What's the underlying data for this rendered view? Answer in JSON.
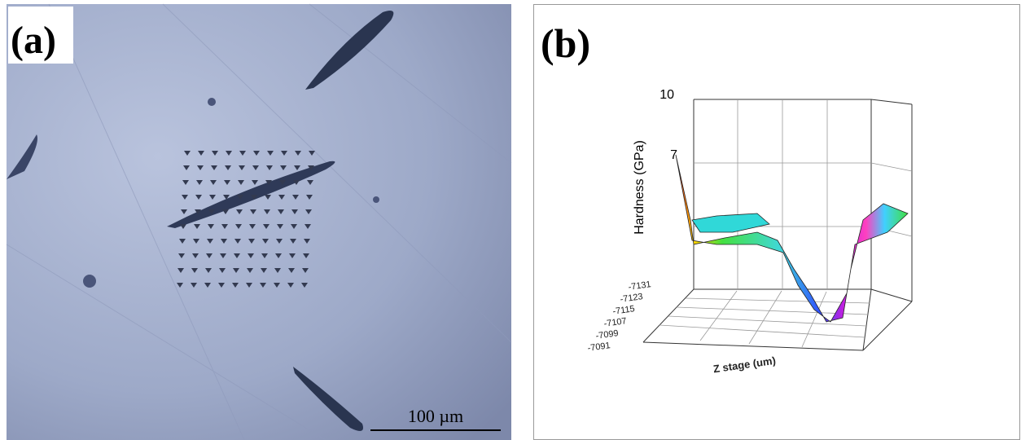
{
  "panel_a": {
    "label": "(a)",
    "scale_bar": "100 µm"
  },
  "panel_b": {
    "label": "(b)",
    "z_axis_label": "Hardness (GPa)",
    "z_ticks": [
      "10",
      "7"
    ],
    "y_ticks": [
      "-7131",
      "-7123",
      "-7115",
      "-7107",
      "-7099",
      "-7091"
    ],
    "x_axis_label": "Z stage (um)"
  }
}
